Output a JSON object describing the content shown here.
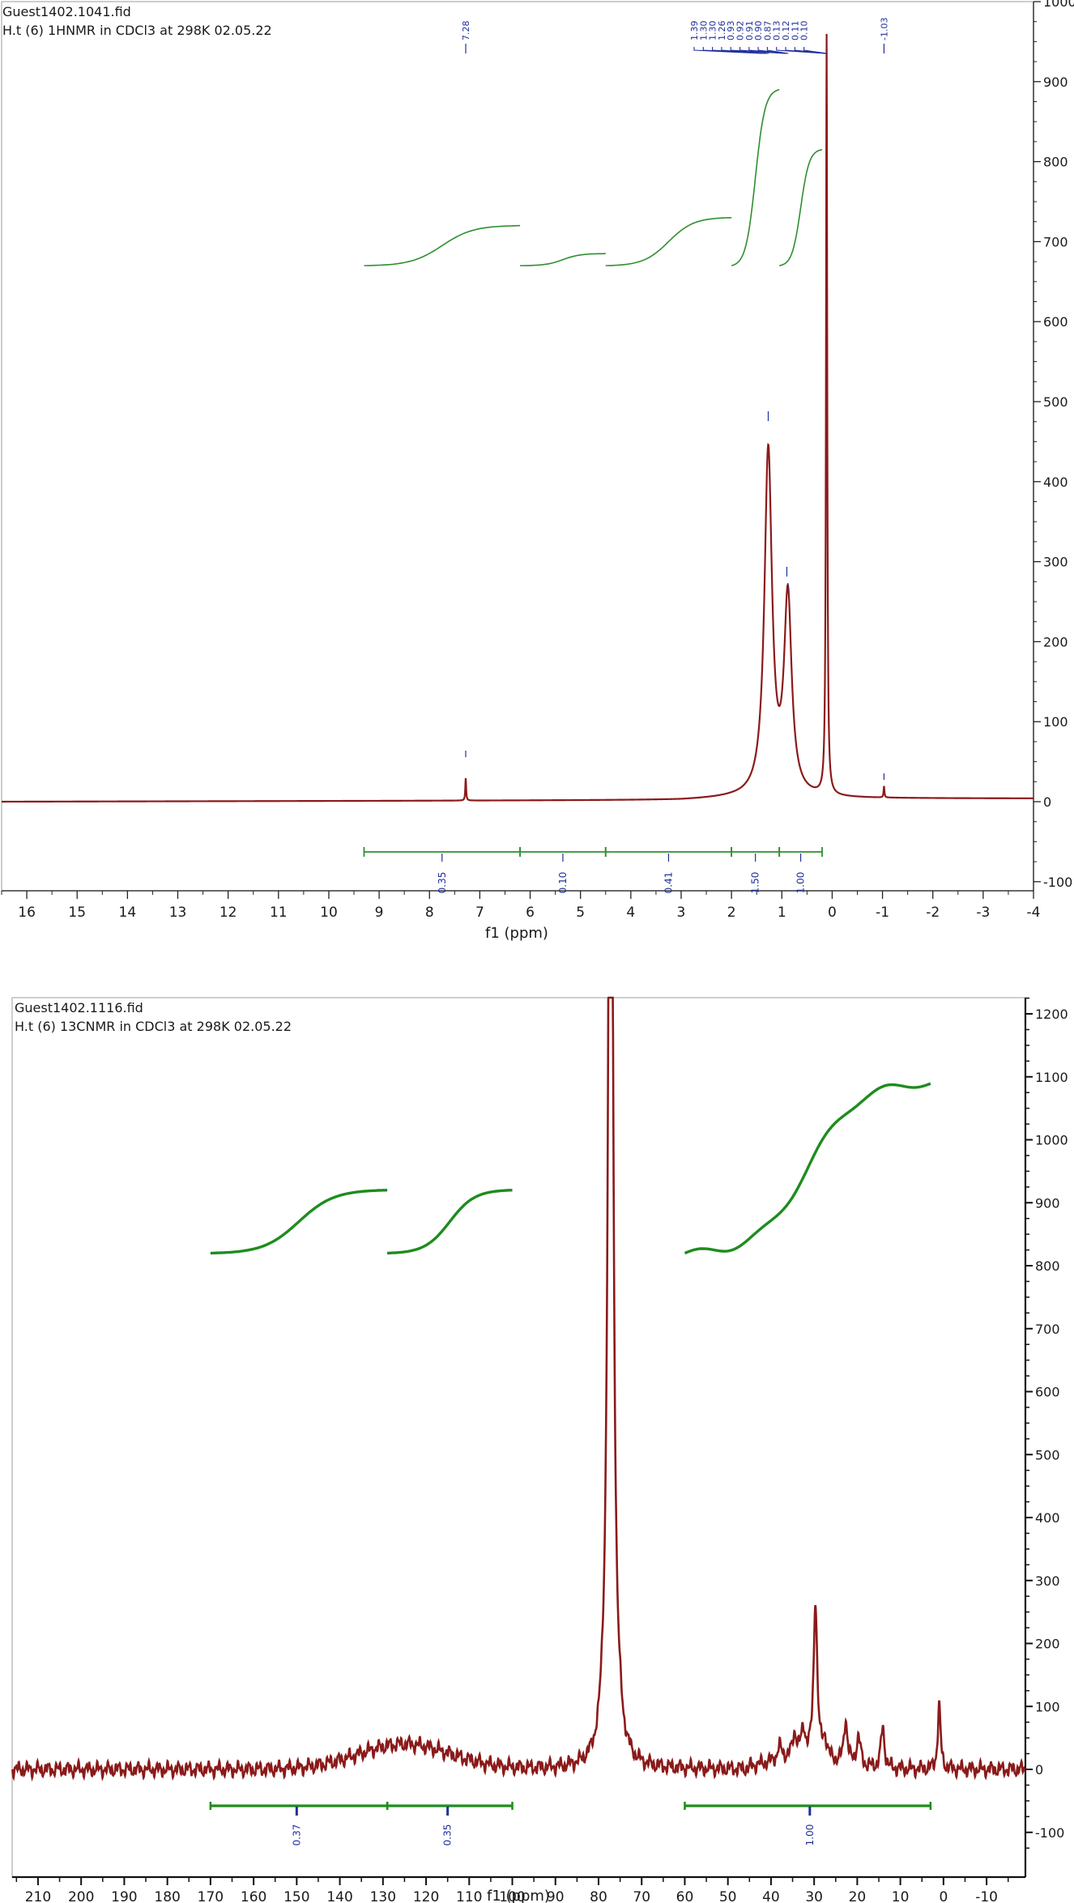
{
  "chart_data": [
    {
      "type": "line",
      "header": [
        "Guest1402.1041.fid",
        "H.t (6) 1HNMR in CDCl3 at 298K 02.05.22"
      ],
      "xlabel": "f1 (ppm)",
      "ylabel": "",
      "xlim": [
        16.5,
        -4
      ],
      "ylim": [
        -100,
        1000
      ],
      "x_ticks": [
        16,
        15,
        14,
        13,
        12,
        11,
        10,
        9,
        8,
        7,
        6,
        5,
        4,
        3,
        2,
        1,
        0,
        -1,
        -2,
        -3,
        -4
      ],
      "y_ticks": [
        -100,
        0,
        100,
        200,
        300,
        400,
        500,
        600,
        700,
        800,
        900,
        1000
      ],
      "spectrum_color": "#8b1a1a",
      "integral_color": "#2f8f2f",
      "label_color": "#1f2f9a",
      "baseline_points": {
        "x": [
          16.5,
          9,
          3,
          2
        ],
        "y": [
          0,
          1,
          2,
          4
        ]
      },
      "peaks": [
        {
          "ppm": 7.28,
          "height": 28,
          "width": 0.01
        },
        {
          "ppm": 1.27,
          "height": 430,
          "width": 0.09
        },
        {
          "ppm": 0.88,
          "height": 245,
          "width": 0.09
        },
        {
          "ppm": 0.11,
          "height": 950,
          "width": 0.014
        },
        {
          "ppm": -1.03,
          "height": 14,
          "width": 0.01
        }
      ],
      "peak_labels_left": [
        "7.28"
      ],
      "peak_labels_cluster": [
        "1.39",
        "1.30",
        "1.30",
        "1.26",
        "0.93",
        "0.92",
        "0.91",
        "0.90",
        "0.87",
        "0.13",
        "0.12",
        "0.11",
        "0.10"
      ],
      "peak_labels_right": [
        "-1.03"
      ],
      "integral_curves": [
        {
          "from": 9.3,
          "to": 6.2,
          "y_start": 670,
          "y_end": 720
        },
        {
          "from": 6.2,
          "to": 4.5,
          "y_start": 670,
          "y_end": 685
        },
        {
          "from": 4.5,
          "to": 2.0,
          "y_start": 670,
          "y_end": 730
        },
        {
          "from": 2.0,
          "to": 1.05,
          "y_start": 670,
          "y_end": 890
        },
        {
          "from": 1.05,
          "to": 0.2,
          "y_start": 670,
          "y_end": 815
        }
      ],
      "integration_ranges": [
        {
          "from": 9.3,
          "to": 6.2,
          "value": "0.35"
        },
        {
          "from": 6.2,
          "to": 4.5,
          "value": "0.10"
        },
        {
          "from": 4.5,
          "to": 2.0,
          "value": "0.41"
        },
        {
          "from": 2.0,
          "to": 1.05,
          "value": "1.50"
        },
        {
          "from": 1.05,
          "to": 0.2,
          "value": "1.00"
        }
      ]
    },
    {
      "type": "line",
      "header": [
        "Guest1402.1116.fid",
        "H.t (6) 13CNMR in CDCl3 at 298K 02.05.22"
      ],
      "xlabel": "f1 (ppm)",
      "ylabel": "",
      "xlim": [
        216,
        -19
      ],
      "ylim": [
        -130,
        1225
      ],
      "x_ticks": [
        210,
        200,
        190,
        180,
        170,
        160,
        150,
        140,
        130,
        120,
        110,
        100,
        90,
        80,
        70,
        60,
        50,
        40,
        30,
        20,
        10,
        0,
        -10
      ],
      "y_ticks": [
        -100,
        0,
        100,
        200,
        300,
        400,
        500,
        600,
        700,
        800,
        900,
        1000,
        1100,
        1200
      ],
      "spectrum_color": "#8b1a1a",
      "integral_color": "#1e8c1e",
      "label_color": "#1f2f9a",
      "broad_hump": {
        "center": 125,
        "width": 15,
        "height": 40
      },
      "peaks": [
        {
          "ppm": 77.2,
          "height": 2200,
          "width": 0.6
        },
        {
          "ppm": 79.0,
          "height": 20,
          "width": 0.8
        },
        {
          "ppm": 75.0,
          "height": 15,
          "width": 0.8
        },
        {
          "ppm": 38.0,
          "height": 20,
          "width": 0.6
        },
        {
          "ppm": 34.5,
          "height": 35,
          "width": 0.6
        },
        {
          "ppm": 32.5,
          "height": 40,
          "width": 0.6
        },
        {
          "ppm": 29.7,
          "height": 250,
          "width": 0.5
        },
        {
          "ppm": 27.5,
          "height": 30,
          "width": 0.6
        },
        {
          "ppm": 22.7,
          "height": 70,
          "width": 0.5
        },
        {
          "ppm": 19.7,
          "height": 45,
          "width": 0.6
        },
        {
          "ppm": 14.1,
          "height": 65,
          "width": 0.5
        },
        {
          "ppm": 1.0,
          "height": 100,
          "width": 0.4
        }
      ],
      "integral_curves": [
        {
          "from": 170,
          "to": 129,
          "y_start": 820,
          "y_end": 920
        },
        {
          "from": 129,
          "to": 100,
          "y_start": 820,
          "y_end": 920
        },
        {
          "from": 60,
          "to": 3,
          "y_start": 820,
          "y_end": 1090
        }
      ],
      "integration_ranges": [
        {
          "from": 170,
          "to": 129,
          "label_at": 150,
          "value": "0.37"
        },
        {
          "from": 129,
          "to": 100,
          "label_at": 115,
          "value": "0.35"
        },
        {
          "from": 60,
          "to": 3,
          "label_at": 31,
          "value": "1.00"
        }
      ]
    }
  ]
}
